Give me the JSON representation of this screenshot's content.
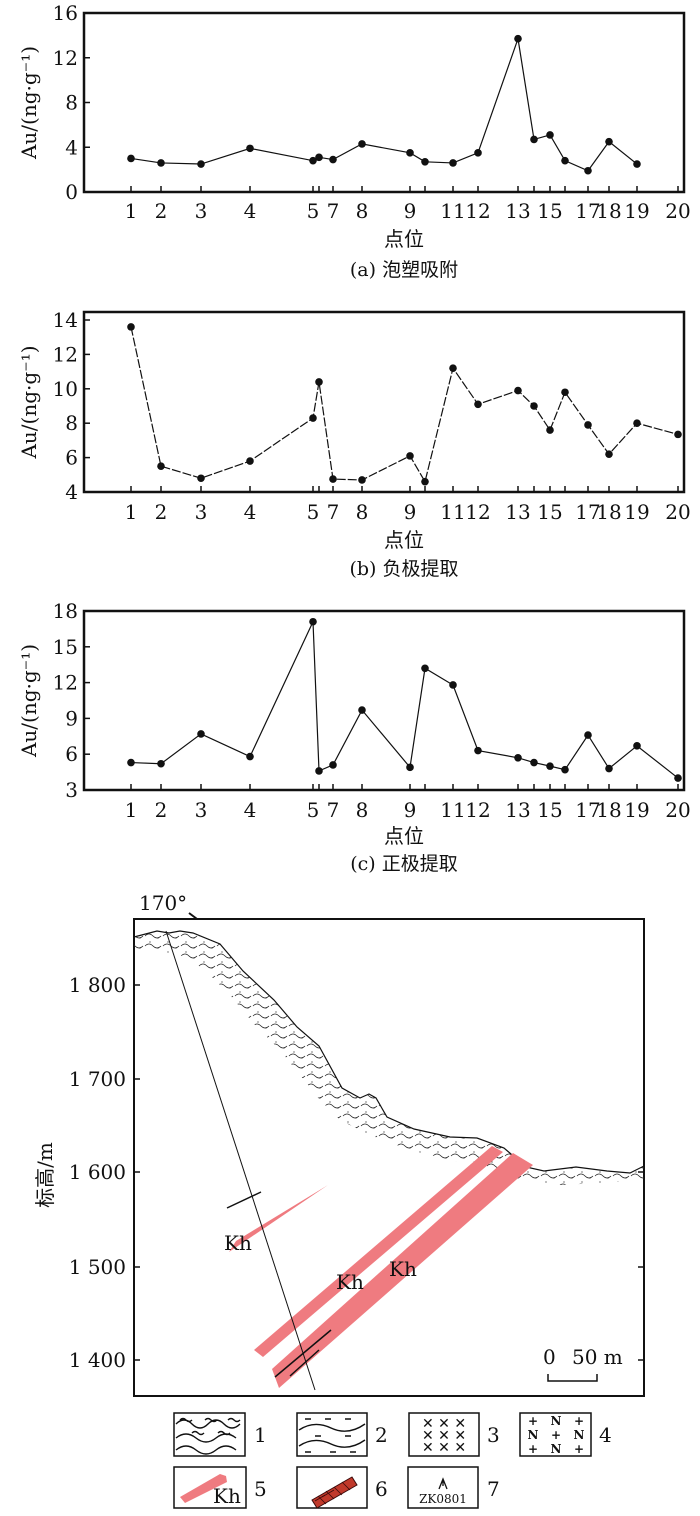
{
  "chart_data": [
    {
      "type": "line",
      "id": "a",
      "caption": "(a) 泡塑吸附",
      "xlabel": "点位",
      "ylabel": "Au/(ng·g⁻¹)",
      "ylim": [
        0,
        16
      ],
      "yticks": [
        "0",
        "4",
        "8",
        "12",
        "16"
      ],
      "ytick_values": [
        0,
        4,
        8,
        12,
        16
      ],
      "line_style": "solid",
      "x_tick_labels": [
        "1",
        "2",
        "3",
        "4",
        "5",
        "",
        "7",
        "8",
        "9",
        "",
        "11",
        "12",
        "13",
        "",
        "15",
        "",
        "17",
        "18",
        "19",
        "20"
      ],
      "values": [
        3.0,
        2.6,
        2.5,
        3.9,
        2.8,
        3.1,
        2.9,
        4.3,
        3.5,
        2.7,
        2.6,
        3.5,
        13.7,
        4.7,
        5.1,
        2.8,
        1.9,
        4.5,
        2.5,
        null
      ]
    },
    {
      "type": "line",
      "id": "b",
      "caption": "(b) 负极提取",
      "xlabel": "点位",
      "ylabel": "Au/(ng·g⁻¹)",
      "ylim": [
        4,
        14
      ],
      "yticks": [
        "4",
        "6",
        "8",
        "10",
        "12",
        "14"
      ],
      "ytick_values": [
        4,
        6,
        8,
        10,
        12,
        14
      ],
      "line_style": "dashed",
      "x_tick_labels": [
        "1",
        "2",
        "3",
        "4",
        "5",
        "",
        "7",
        "8",
        "9",
        "",
        "11",
        "12",
        "13",
        "",
        "15",
        "",
        "17",
        "18",
        "19",
        "20"
      ],
      "values": [
        13.6,
        5.5,
        4.8,
        5.8,
        8.3,
        10.4,
        4.75,
        4.7,
        6.1,
        4.6,
        11.2,
        9.1,
        9.9,
        9.0,
        7.6,
        9.8,
        7.9,
        6.2,
        8.0,
        7.35
      ]
    },
    {
      "type": "line",
      "id": "c",
      "caption": "(c) 正极提取",
      "xlabel": "点位",
      "ylabel": "Au/(ng·g⁻¹)",
      "ylim": [
        3,
        18
      ],
      "yticks": [
        "3",
        "6",
        "9",
        "12",
        "15",
        "18"
      ],
      "ytick_values": [
        3,
        6,
        9,
        12,
        15,
        18
      ],
      "line_style": "solid",
      "x_tick_labels": [
        "1",
        "2",
        "3",
        "4",
        "5",
        "",
        "7",
        "8",
        "9",
        "",
        "11",
        "12",
        "13",
        "",
        "15",
        "",
        "17",
        "18",
        "19",
        "20"
      ],
      "values": [
        5.3,
        5.2,
        7.7,
        5.8,
        17.1,
        4.6,
        5.1,
        9.7,
        4.9,
        13.2,
        11.8,
        6.3,
        5.7,
        5.3,
        5.0,
        4.7,
        7.6,
        4.8,
        6.7,
        4.0
      ]
    }
  ],
  "section": {
    "azimuth": "170°",
    "ylabel": "标高/m",
    "yticks": [
      "1 800",
      "1 700",
      "1 600",
      "1 500",
      "1 400"
    ],
    "orebody_labels": [
      "Kh",
      "Kh",
      "Kh"
    ],
    "scale_zero": "0",
    "scale_label": "50 m",
    "orebody_color": "#ef7b80"
  },
  "legend": {
    "items": [
      {
        "number": "1"
      },
      {
        "number": "2"
      },
      {
        "number": "3"
      },
      {
        "number": "4"
      },
      {
        "number": "5",
        "symbol_text": "Kh"
      },
      {
        "number": "6"
      },
      {
        "number": "7",
        "symbol_text": "ZK0801"
      }
    ],
    "symbol4_chars": [
      "+",
      "N",
      "+",
      "N",
      "+",
      "N",
      "+",
      "N",
      "+"
    ]
  }
}
